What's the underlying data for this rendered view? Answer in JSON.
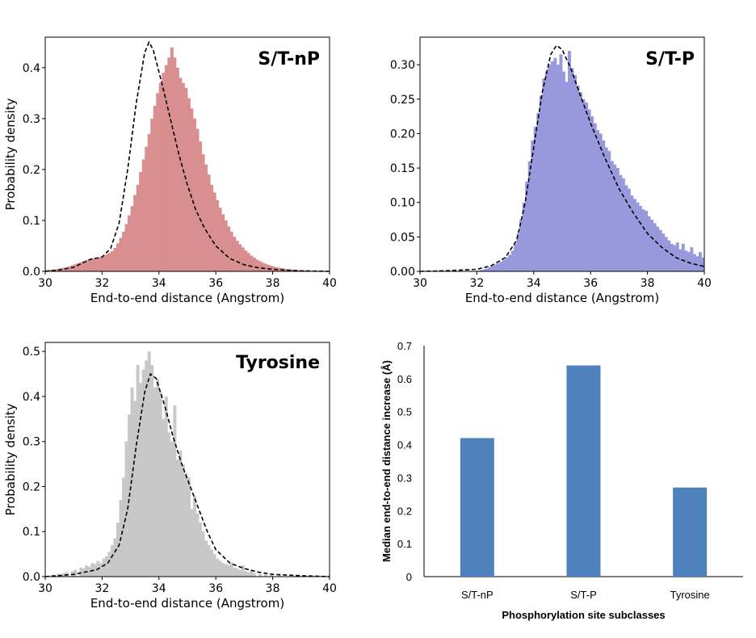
{
  "chart_data": [
    {
      "type": "histogram",
      "title": "S/T-nP",
      "xlabel": "End-to-end distance (Angstrom)",
      "ylabel": "Probability density",
      "xlim": [
        30,
        40
      ],
      "ylim": [
        0,
        0.46
      ],
      "xticks": [
        "30",
        "32",
        "34",
        "36",
        "38",
        "40"
      ],
      "yticks": [
        {
          "v": 0.0,
          "label": "0.0"
        },
        {
          "v": 0.1,
          "label": "0.1"
        },
        {
          "v": 0.2,
          "label": "0.2"
        },
        {
          "v": 0.3,
          "label": "0.3"
        },
        {
          "v": 0.4,
          "label": "0.4"
        }
      ],
      "color": "#d98f8f",
      "bins": {
        "start": 30,
        "width": 0.1,
        "values": [
          0.002,
          0.003,
          0.003,
          0.004,
          0.005,
          0.006,
          0.007,
          0.008,
          0.01,
          0.012,
          0.014,
          0.016,
          0.018,
          0.02,
          0.022,
          0.024,
          0.025,
          0.026,
          0.027,
          0.028,
          0.03,
          0.033,
          0.036,
          0.04,
          0.046,
          0.055,
          0.066,
          0.078,
          0.093,
          0.11,
          0.128,
          0.15,
          0.17,
          0.195,
          0.22,
          0.245,
          0.27,
          0.3,
          0.325,
          0.35,
          0.37,
          0.39,
          0.405,
          0.42,
          0.44,
          0.42,
          0.4,
          0.38,
          0.37,
          0.36,
          0.34,
          0.32,
          0.3,
          0.28,
          0.255,
          0.23,
          0.21,
          0.19,
          0.17,
          0.155,
          0.14,
          0.125,
          0.112,
          0.1,
          0.088,
          0.078,
          0.068,
          0.06,
          0.053,
          0.047,
          0.041,
          0.036,
          0.031,
          0.027,
          0.023,
          0.02,
          0.017,
          0.015,
          0.013,
          0.011,
          0.009,
          0.008,
          0.007,
          0.006,
          0.005,
          0.004,
          0.004,
          0.003,
          0.003,
          0.002,
          0.002,
          0.002,
          0.001,
          0.001,
          0.001,
          0.001,
          0.001,
          0.001,
          0.001,
          0.001
        ]
      },
      "fit_curve": {
        "style": "dashed",
        "x": [
          30,
          30.5,
          31,
          31.3,
          31.6,
          32,
          32.3,
          32.6,
          32.9,
          33.2,
          33.5,
          33.65,
          33.8,
          34.1,
          34.4,
          34.7,
          35,
          35.3,
          35.6,
          36,
          36.5,
          37,
          37.5,
          38,
          39,
          40
        ],
        "y": [
          0,
          0.003,
          0.008,
          0.016,
          0.024,
          0.028,
          0.045,
          0.095,
          0.2,
          0.33,
          0.43,
          0.45,
          0.435,
          0.37,
          0.3,
          0.23,
          0.17,
          0.12,
          0.085,
          0.05,
          0.025,
          0.013,
          0.007,
          0.004,
          0.001,
          0
        ]
      }
    },
    {
      "type": "histogram",
      "title": "S/T-P",
      "xlabel": "End-to-end distance (Angstrom)",
      "ylabel": "Probability density",
      "xlim": [
        30,
        40
      ],
      "ylim": [
        0,
        0.34
      ],
      "xticks": [
        "30",
        "32",
        "34",
        "36",
        "38",
        "40"
      ],
      "yticks": [
        {
          "v": 0.0,
          "label": "0.00"
        },
        {
          "v": 0.05,
          "label": "0.05"
        },
        {
          "v": 0.1,
          "label": "0.10"
        },
        {
          "v": 0.15,
          "label": "0.15"
        },
        {
          "v": 0.2,
          "label": "0.20"
        },
        {
          "v": 0.25,
          "label": "0.25"
        },
        {
          "v": 0.3,
          "label": "0.30"
        }
      ],
      "color": "#9898dd",
      "bins": {
        "start": 32.0,
        "width": 0.1,
        "values": [
          0.001,
          0.002,
          0.003,
          0.004,
          0.006,
          0.008,
          0.01,
          0.012,
          0.014,
          0.017,
          0.02,
          0.024,
          0.03,
          0.04,
          0.055,
          0.075,
          0.1,
          0.13,
          0.16,
          0.19,
          0.21,
          0.23,
          0.255,
          0.28,
          0.29,
          0.3,
          0.305,
          0.31,
          0.3,
          0.315,
          0.29,
          0.275,
          0.32,
          0.295,
          0.285,
          0.27,
          0.26,
          0.25,
          0.245,
          0.235,
          0.225,
          0.215,
          0.205,
          0.2,
          0.19,
          0.18,
          0.175,
          0.16,
          0.155,
          0.15,
          0.14,
          0.135,
          0.125,
          0.12,
          0.11,
          0.105,
          0.1,
          0.095,
          0.09,
          0.088,
          0.08,
          0.075,
          0.07,
          0.065,
          0.06,
          0.055,
          0.05,
          0.045,
          0.04,
          0.038,
          0.042,
          0.032,
          0.04,
          0.03,
          0.028,
          0.035,
          0.025,
          0.022,
          0.028,
          0.02
        ]
      },
      "fit_curve": {
        "style": "dashed",
        "x": [
          30,
          31,
          32,
          32.5,
          33,
          33.4,
          33.7,
          34,
          34.3,
          34.6,
          34.8,
          35,
          35.3,
          35.6,
          36,
          36.5,
          37,
          37.5,
          38,
          38.5,
          39,
          39.5,
          40
        ],
        "y": [
          0,
          0.001,
          0.003,
          0.008,
          0.02,
          0.045,
          0.1,
          0.18,
          0.26,
          0.315,
          0.328,
          0.322,
          0.295,
          0.26,
          0.215,
          0.165,
          0.12,
          0.085,
          0.055,
          0.035,
          0.02,
          0.012,
          0.007
        ]
      }
    },
    {
      "type": "histogram",
      "title": "Tyrosine",
      "xlabel": "End-to-end distance (Angstrom)",
      "ylabel": "Probability density",
      "xlim": [
        30,
        40
      ],
      "ylim": [
        0,
        0.52
      ],
      "xticks": [
        "30",
        "32",
        "34",
        "36",
        "38",
        "40"
      ],
      "yticks": [
        {
          "v": 0.0,
          "label": "0.0"
        },
        {
          "v": 0.1,
          "label": "0.1"
        },
        {
          "v": 0.2,
          "label": "0.2"
        },
        {
          "v": 0.3,
          "label": "0.3"
        },
        {
          "v": 0.4,
          "label": "0.4"
        },
        {
          "v": 0.5,
          "label": "0.5"
        }
      ],
      "color": "#c8c8c8",
      "bins": {
        "start": 30,
        "width": 0.1,
        "values": [
          0,
          0,
          0.004,
          0,
          0.006,
          0,
          0.008,
          0.01,
          0,
          0.012,
          0.015,
          0,
          0.02,
          0.018,
          0.025,
          0.022,
          0.03,
          0.028,
          0.035,
          0.03,
          0.04,
          0.045,
          0.055,
          0.07,
          0.085,
          0.12,
          0.17,
          0.22,
          0.3,
          0.36,
          0.42,
          0.39,
          0.47,
          0.43,
          0.46,
          0.48,
          0.5,
          0.47,
          0.42,
          0.44,
          0.41,
          0.35,
          0.4,
          0.32,
          0.3,
          0.38,
          0.26,
          0.28,
          0.25,
          0.23,
          0.22,
          0.15,
          0.18,
          0.14,
          0.12,
          0.1,
          0.08,
          0.07,
          0.06,
          0.05,
          0.04,
          0.035,
          0.03,
          0.028,
          0.025,
          0.03,
          0.02,
          0.018,
          0.015,
          0.025,
          0.012,
          0.01,
          0.015,
          0.008,
          0,
          0.006,
          0,
          0.005,
          0,
          0.004,
          0,
          0,
          0.003,
          0,
          0,
          0,
          0,
          0,
          0,
          0,
          0,
          0,
          0,
          0,
          0,
          0,
          0,
          0,
          0,
          0
        ]
      },
      "fit_curve": {
        "style": "dashed",
        "x": [
          30,
          31,
          31.8,
          32.2,
          32.6,
          32.9,
          33.2,
          33.5,
          33.7,
          33.9,
          34.2,
          34.5,
          34.8,
          35.1,
          35.4,
          35.7,
          36,
          36.5,
          37,
          37.5,
          38,
          39,
          40
        ],
        "y": [
          0,
          0.005,
          0.015,
          0.03,
          0.07,
          0.15,
          0.29,
          0.41,
          0.45,
          0.44,
          0.38,
          0.31,
          0.25,
          0.2,
          0.15,
          0.1,
          0.06,
          0.03,
          0.018,
          0.01,
          0.005,
          0.002,
          0
        ]
      }
    },
    {
      "type": "bar",
      "xlabel": "Phosphorylation site subclasses",
      "ylabel": "Median end-to-end distance increase (Å)",
      "categories": [
        "S/T-nP",
        "S/T-P",
        "Tyrosine"
      ],
      "values": [
        0.42,
        0.64,
        0.27
      ],
      "ylim": [
        0,
        0.7
      ],
      "yticks": [
        {
          "v": 0,
          "label": "0"
        },
        {
          "v": 0.1,
          "label": "0.1"
        },
        {
          "v": 0.2,
          "label": "0.2"
        },
        {
          "v": 0.3,
          "label": "0.3"
        },
        {
          "v": 0.4,
          "label": "0.4"
        },
        {
          "v": 0.5,
          "label": "0.5"
        },
        {
          "v": 0.6,
          "label": "0.6"
        },
        {
          "v": 0.7,
          "label": "0.7"
        }
      ],
      "color": "#4f81bd"
    }
  ]
}
